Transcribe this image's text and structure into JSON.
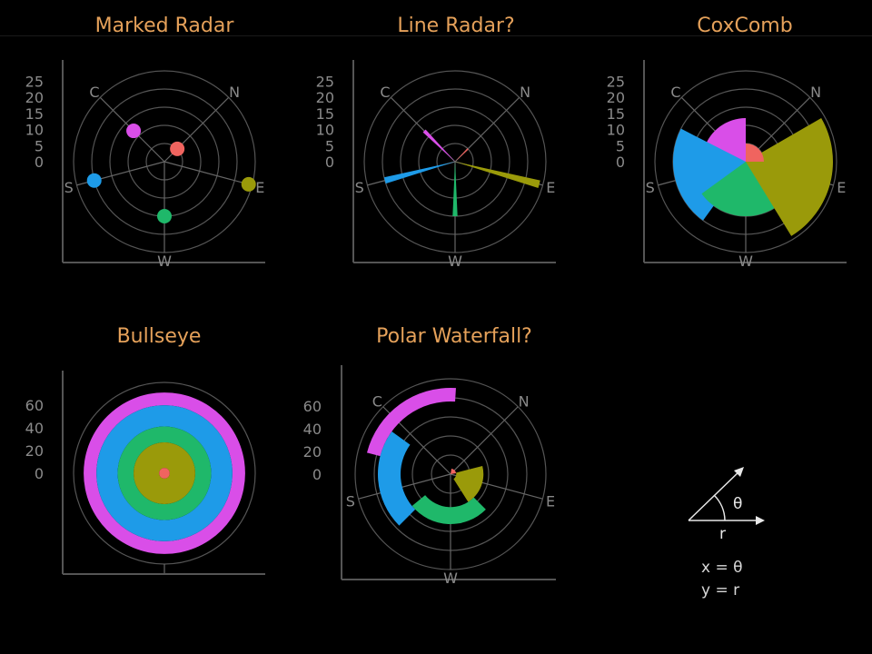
{
  "chart_data": [
    {
      "type": "scatter",
      "title": "Marked Radar",
      "directions": [
        "N",
        "E",
        "W",
        "S",
        "C"
      ],
      "r_ticks": [
        0,
        5,
        10,
        15,
        20,
        25
      ],
      "rlim": [
        0,
        25
      ],
      "grid": true,
      "values": [
        5,
        24,
        15,
        20,
        12
      ],
      "colors": [
        "#f0645f",
        "#9a9a0a",
        "#1fb86a",
        "#1e9be8",
        "#d94ee8"
      ]
    },
    {
      "type": "line",
      "title": "Line Radar?",
      "directions": [
        "N",
        "E",
        "W",
        "S",
        "C"
      ],
      "r_ticks": [
        0,
        5,
        10,
        15,
        20,
        25
      ],
      "rlim": [
        0,
        25
      ],
      "grid": true,
      "values": [
        5,
        24,
        15,
        20,
        12
      ],
      "colors": [
        "#f0645f",
        "#9a9a0a",
        "#1fb86a",
        "#1e9be8",
        "#d94ee8"
      ]
    },
    {
      "type": "area",
      "title": "CoxComb",
      "directions": [
        "N",
        "E",
        "W",
        "S",
        "C"
      ],
      "r_ticks": [
        0,
        5,
        10,
        15,
        20,
        25
      ],
      "rlim": [
        0,
        25
      ],
      "grid": true,
      "values": [
        5,
        24,
        15,
        20,
        12
      ],
      "colors": [
        "#f0645f",
        "#9a9a0a",
        "#1fb86a",
        "#1e9be8",
        "#d94ee8"
      ]
    },
    {
      "type": "area",
      "title": "Bullseye",
      "r_ticks": [
        0,
        20,
        40,
        60
      ],
      "rlim": [
        0,
        76
      ],
      "grid": true,
      "rings": [
        {
          "start": 0,
          "end": 5,
          "color": "#f0645f"
        },
        {
          "start": 5,
          "end": 29,
          "color": "#9a9a0a"
        },
        {
          "start": 29,
          "end": 44,
          "color": "#1fb86a"
        },
        {
          "start": 44,
          "end": 64,
          "color": "#1e9be8"
        },
        {
          "start": 64,
          "end": 76,
          "color": "#d94ee8"
        }
      ]
    },
    {
      "type": "bar",
      "title": "Polar Waterfall?",
      "directions": [
        "N",
        "E",
        "W",
        "S",
        "C"
      ],
      "r_ticks": [
        0,
        20,
        40,
        60
      ],
      "rlim": [
        0,
        80
      ],
      "grid": true,
      "segments": [
        {
          "start": 0,
          "end": 5,
          "color": "#f0645f"
        },
        {
          "start": 5,
          "end": 29,
          "color": "#9a9a0a"
        },
        {
          "start": 29,
          "end": 44,
          "color": "#1fb86a"
        },
        {
          "start": 44,
          "end": 64,
          "color": "#1e9be8"
        },
        {
          "start": 64,
          "end": 76,
          "color": "#d94ee8"
        }
      ]
    }
  ],
  "legend": {
    "theta_symbol": "θ",
    "r_symbol": "r",
    "x_equation": "x = θ",
    "y_equation": "y = r"
  }
}
